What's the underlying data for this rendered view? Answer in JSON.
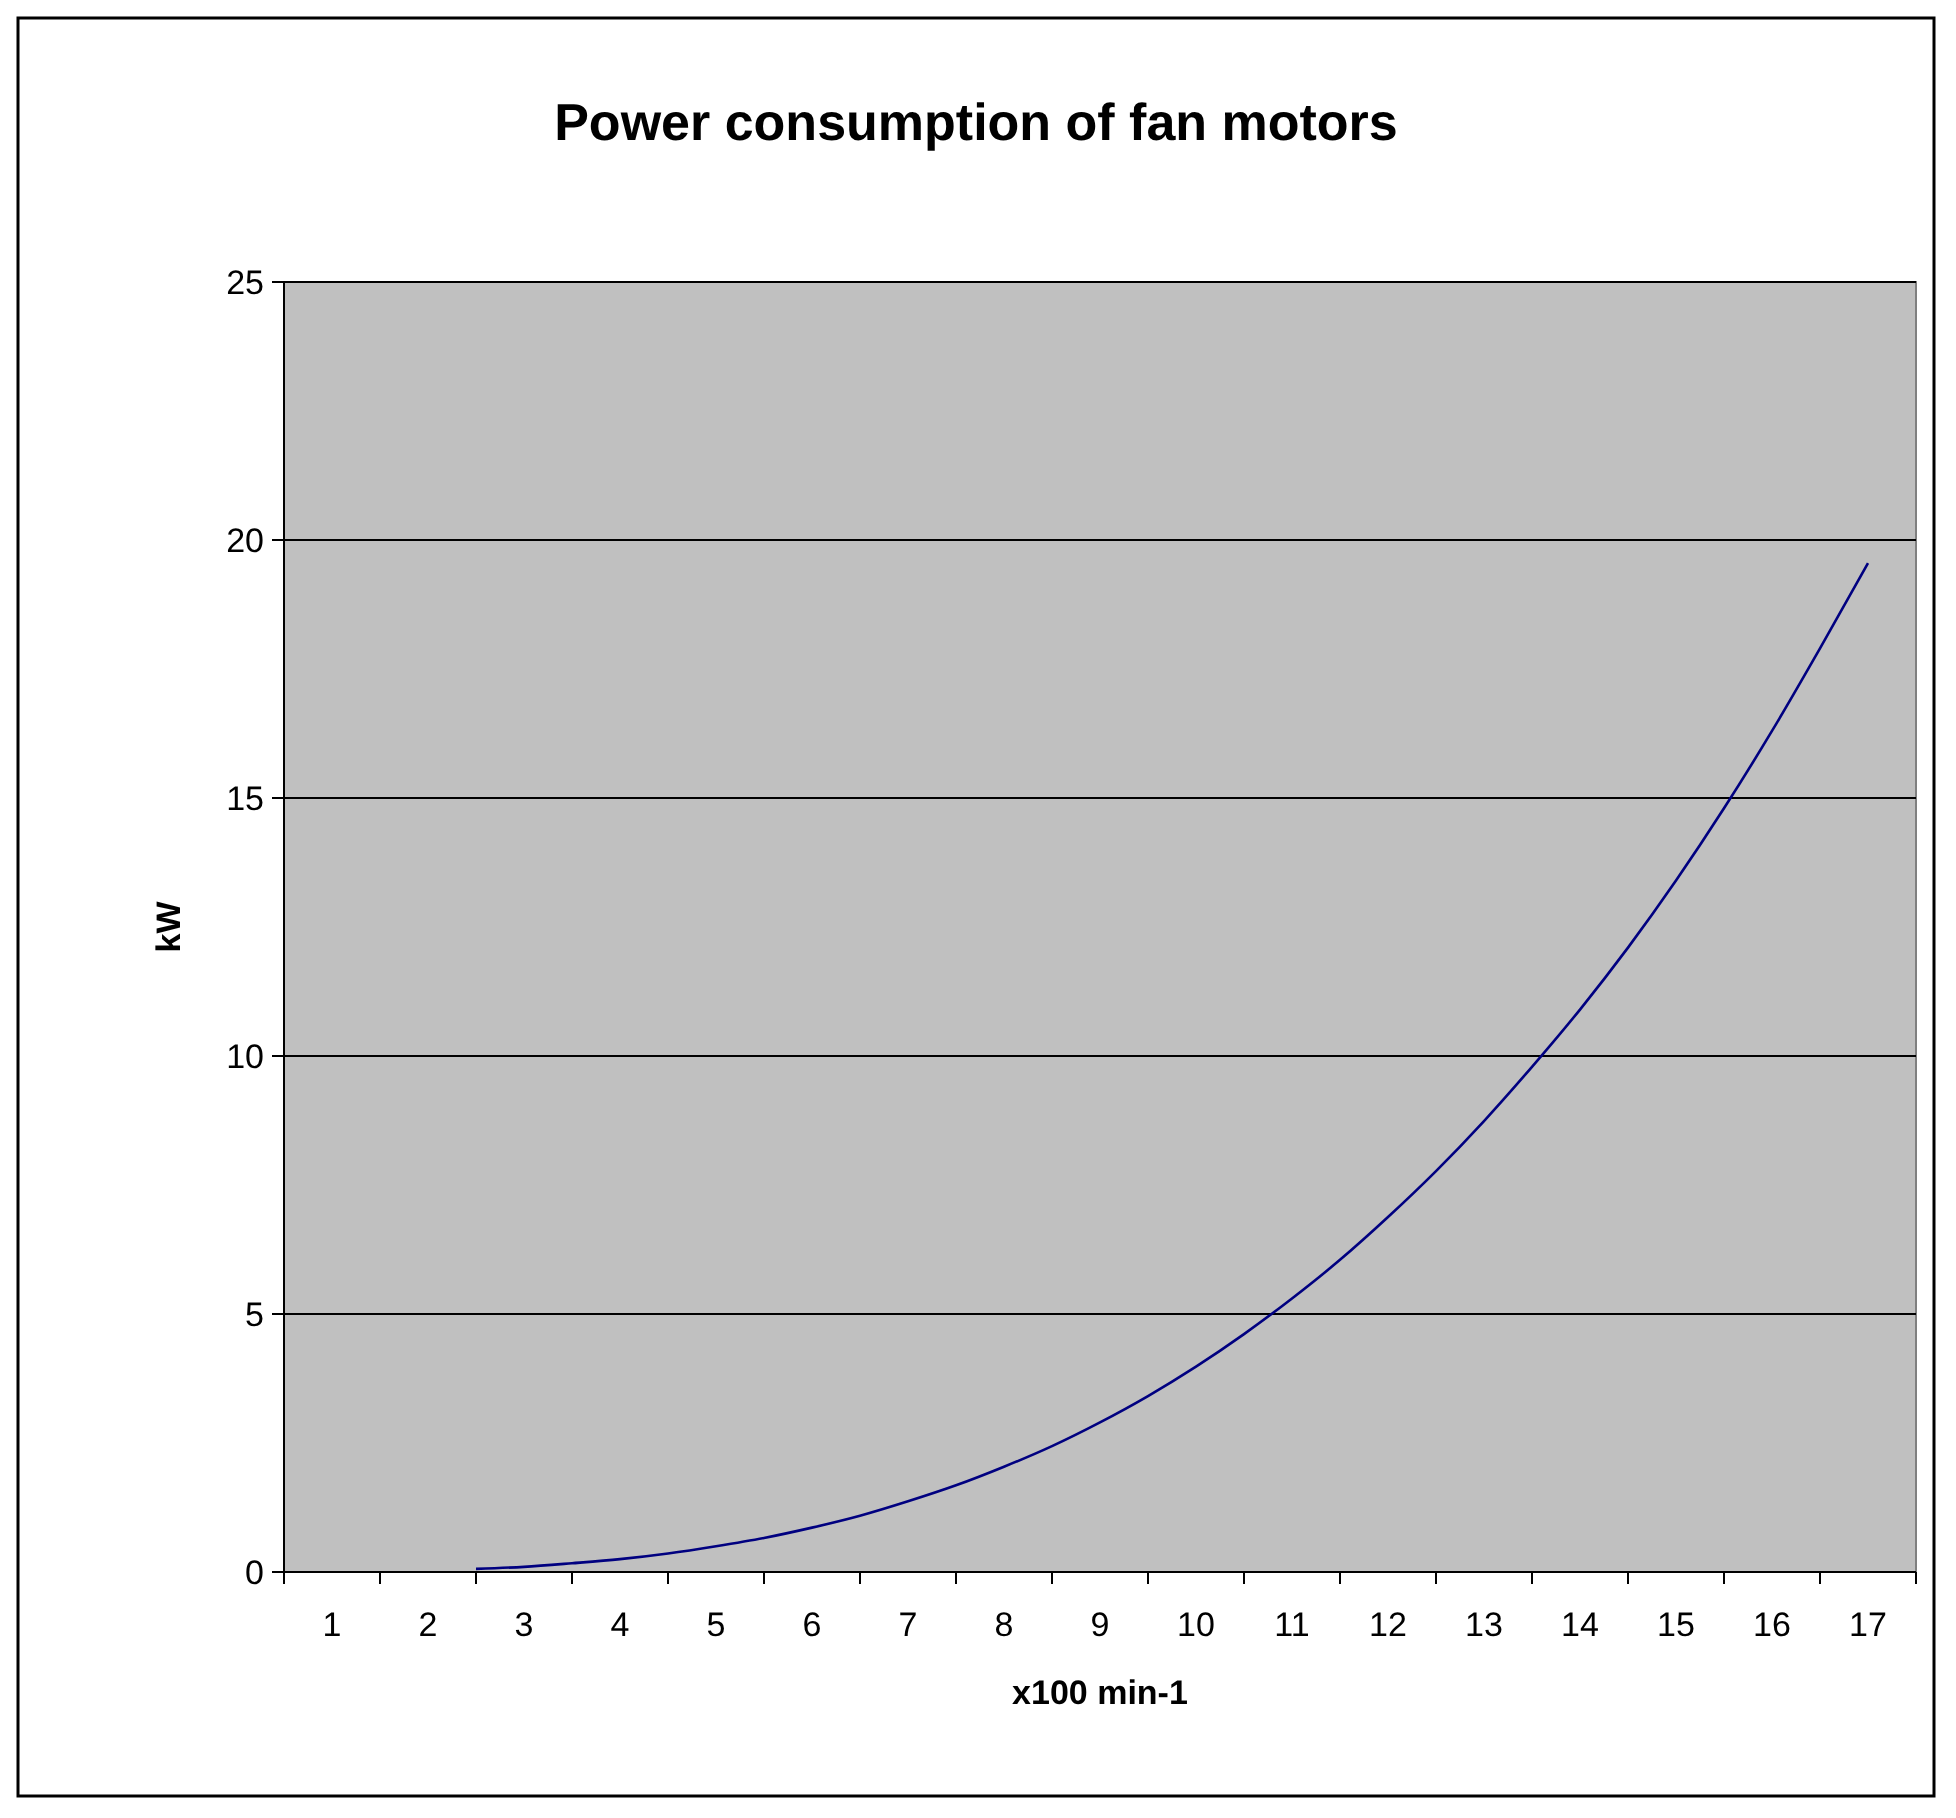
{
  "chart_data": {
    "type": "line",
    "title": "Power consumption of fan motors",
    "xlabel": "x100 min-1",
    "ylabel": "kW",
    "x": [
      2.5,
      3,
      3.5,
      4,
      4.5,
      5,
      5.5,
      6,
      6.5,
      7,
      7.5,
      8,
      8.5,
      9,
      9.5,
      10,
      10.5,
      11,
      11.5,
      12,
      12.5,
      13,
      13.5,
      14,
      14.5,
      15,
      15.5,
      16,
      16.5,
      17
    ],
    "series": [
      {
        "color": "#000080",
        "values": [
          0.06,
          0.1,
          0.17,
          0.25,
          0.36,
          0.5,
          0.66,
          0.86,
          1.09,
          1.37,
          1.68,
          2.04,
          2.44,
          2.9,
          3.41,
          3.98,
          4.61,
          5.3,
          6.05,
          6.88,
          7.77,
          8.74,
          9.79,
          10.9,
          12.1,
          13.4,
          14.8,
          16.3,
          17.9,
          19.55
        ]
      }
    ],
    "xlim": [
      0.5,
      17.5
    ],
    "xticks": [
      1,
      2,
      3,
      4,
      5,
      6,
      7,
      8,
      9,
      10,
      11,
      12,
      13,
      14,
      15,
      16,
      17,
      {
        "value": 0.5,
        "label": null
      },
      {
        "value": 1.5,
        "label": null
      },
      {
        "value": 2.5,
        "label": null
      },
      {
        "value": 3.5,
        "label": null
      },
      {
        "value": 4.5,
        "label": null
      },
      {
        "value": 5.5,
        "label": null
      },
      {
        "value": 6.5,
        "label": null
      },
      {
        "value": 7.5,
        "label": null
      },
      {
        "value": 8.5,
        "label": null
      },
      {
        "value": 9.5,
        "label": null
      },
      {
        "value": 10.5,
        "label": null
      },
      {
        "value": 11.5,
        "label": null
      },
      {
        "value": 12.5,
        "label": null
      },
      {
        "value": 13.5,
        "label": null
      },
      {
        "value": 14.5,
        "label": null
      },
      {
        "value": 15.5,
        "label": null
      },
      {
        "value": 16.5,
        "label": null
      },
      {
        "value": 17.5,
        "label": null
      }
    ],
    "ylim": [
      0,
      25
    ],
    "yticks": [
      0,
      5,
      10,
      15,
      20,
      25
    ],
    "grid": "y",
    "marker": "none",
    "line_style": "solid"
  }
}
